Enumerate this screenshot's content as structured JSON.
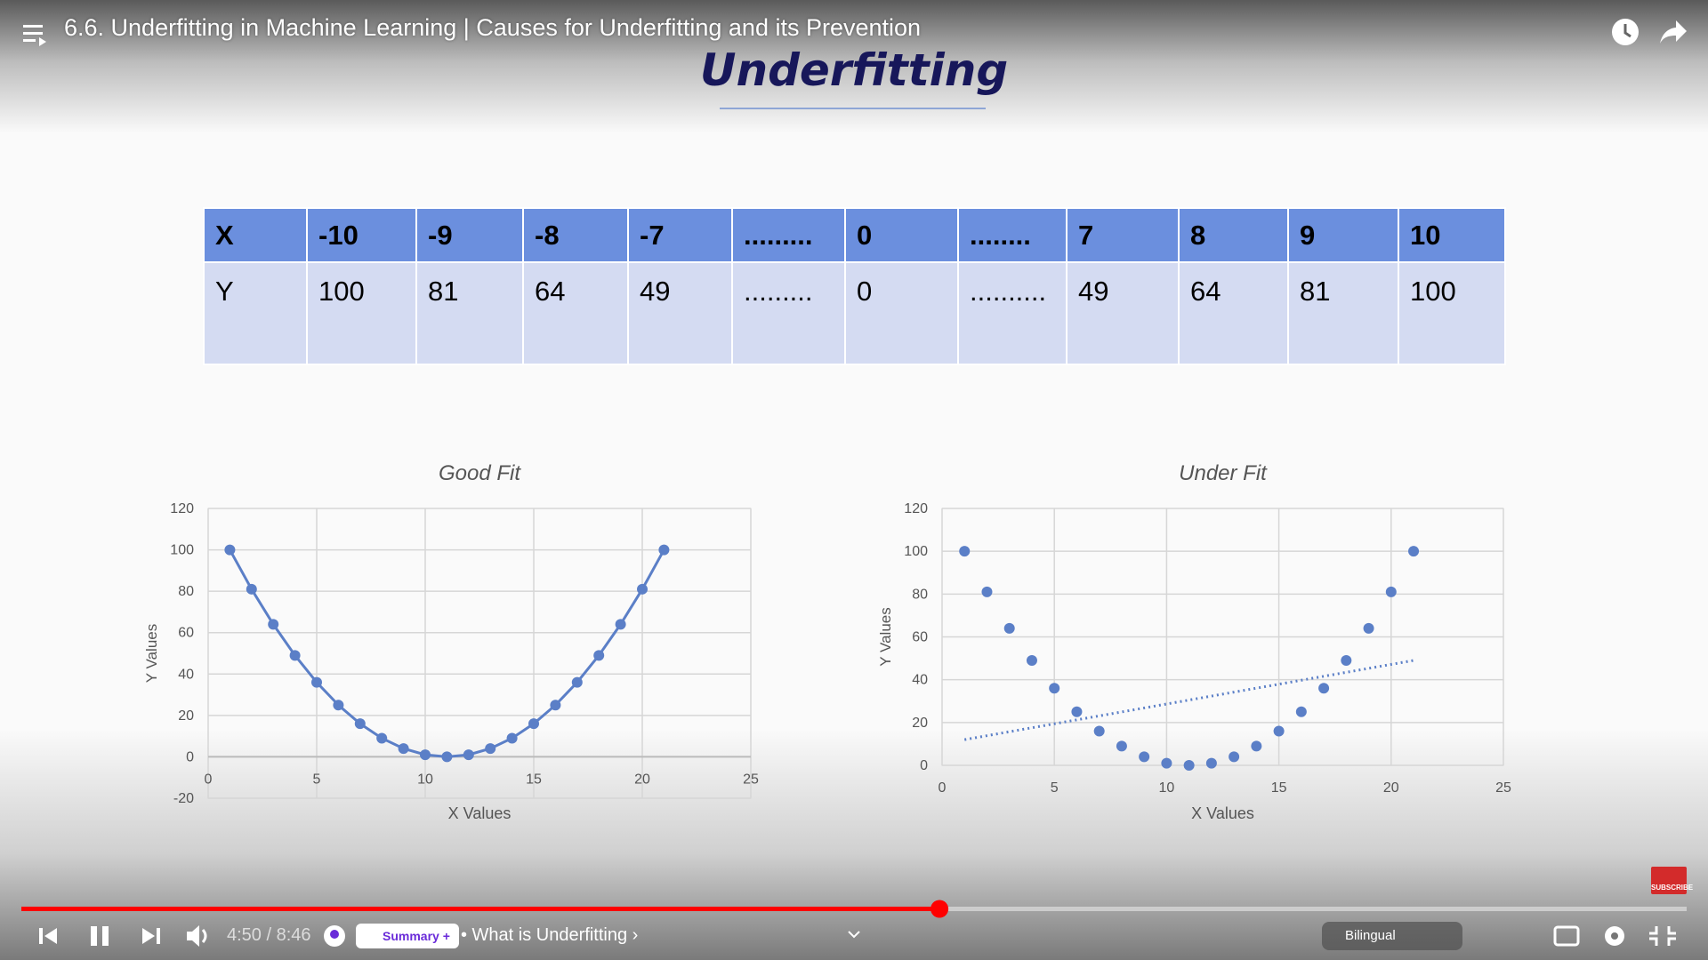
{
  "player": {
    "title": "6.6. Underfitting in Machine Learning | Causes for Underfitting and its Prevention",
    "time": "4:50 / 8:46",
    "summary": "Summary +",
    "chapter": "• What is Underfitting ›",
    "bilingual": "Bilingual",
    "subscribe": "SUBSCRIBE"
  },
  "slide": {
    "heading": "Underfitting",
    "table": {
      "rows": [
        [
          "X",
          "-10",
          "-9",
          "-8",
          "-7",
          ".........",
          "0",
          "........",
          "7",
          "8",
          "9",
          "10"
        ],
        [
          "Y",
          "100",
          "81",
          "64",
          "49",
          ".........",
          "0",
          "..........",
          "49",
          "64",
          "81",
          "100"
        ]
      ]
    }
  },
  "chart_data": [
    {
      "type": "line",
      "title": "Good Fit",
      "x_label": "X Values",
      "y_label": "Y Values",
      "color": "#5b7fc7",
      "x": [
        1,
        2,
        3,
        4,
        5,
        6,
        7,
        8,
        9,
        10,
        11,
        12,
        13,
        14,
        15,
        16,
        17,
        18,
        19,
        20,
        21
      ],
      "values": [
        100,
        81,
        64,
        49,
        36,
        25,
        16,
        9,
        4,
        1,
        0,
        1,
        4,
        9,
        16,
        25,
        36,
        49,
        64,
        81,
        100
      ],
      "xlim": [
        0,
        25
      ],
      "xticks": [
        0,
        5,
        10,
        15,
        20,
        25
      ],
      "ylim": [
        -20,
        120
      ],
      "yticks": [
        -20,
        0,
        20,
        40,
        60,
        80,
        100,
        120
      ],
      "grid": true
    },
    {
      "type": "scatter",
      "title": "Under Fit",
      "x_label": "X Values",
      "y_label": "Y Values",
      "color": "#5b7fc7",
      "x": [
        1,
        2,
        3,
        4,
        5,
        6,
        7,
        8,
        9,
        10,
        11,
        12,
        13,
        14,
        15,
        16,
        17,
        18,
        19,
        20,
        21
      ],
      "values": [
        100,
        81,
        64,
        49,
        36,
        25,
        16,
        9,
        4,
        1,
        0,
        1,
        4,
        9,
        16,
        25,
        36,
        49,
        64,
        81,
        100
      ],
      "trendline": {
        "x": [
          1,
          21
        ],
        "values": [
          12,
          49
        ]
      },
      "xlim": [
        0,
        25
      ],
      "xticks": [
        0,
        5,
        10,
        15,
        20,
        25
      ],
      "ylim": [
        0,
        120
      ],
      "yticks": [
        0,
        20,
        40,
        60,
        80,
        100,
        120
      ],
      "grid": true
    }
  ]
}
